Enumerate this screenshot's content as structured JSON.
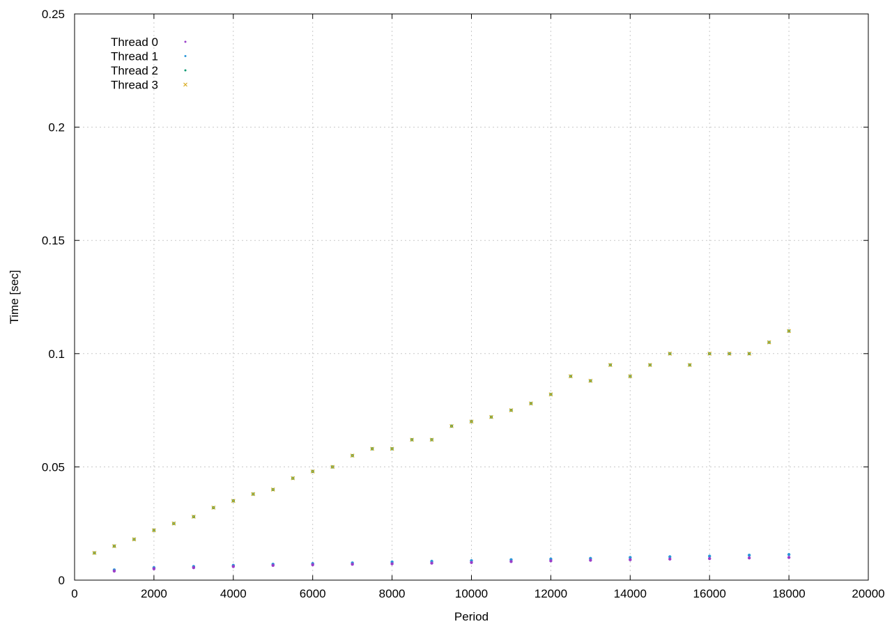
{
  "chart_data": {
    "type": "scatter",
    "title": "",
    "xlabel": "Period",
    "ylabel": "Time [sec]",
    "xlim": [
      0,
      20000
    ],
    "ylim": [
      0,
      0.25
    ],
    "xticks": [
      "0",
      "2000",
      "4000",
      "6000",
      "8000",
      "10000",
      "12000",
      "14000",
      "16000",
      "18000",
      "20000"
    ],
    "yticks": [
      "0",
      "0.05",
      "0.1",
      "0.15",
      "0.2",
      "0.25"
    ],
    "grid": true,
    "legend_position": "top-left",
    "series": [
      {
        "name": "Thread 0",
        "color": "#9a3fc9",
        "marker": "dot",
        "points": [
          [
            1000,
            0.004
          ],
          [
            2000,
            0.005
          ],
          [
            3000,
            0.0055
          ],
          [
            4000,
            0.006
          ],
          [
            5000,
            0.0065
          ],
          [
            6000,
            0.0068
          ],
          [
            7000,
            0.007
          ],
          [
            8000,
            0.0072
          ],
          [
            9000,
            0.0075
          ],
          [
            10000,
            0.0078
          ],
          [
            11000,
            0.0082
          ],
          [
            12000,
            0.0085
          ],
          [
            13000,
            0.0088
          ],
          [
            14000,
            0.009
          ],
          [
            15000,
            0.0093
          ],
          [
            16000,
            0.0095
          ],
          [
            17000,
            0.0098
          ],
          [
            18000,
            0.01
          ]
        ]
      },
      {
        "name": "Thread 1",
        "color": "#2b97d8",
        "marker": "dot",
        "points": [
          [
            1000,
            0.0045
          ],
          [
            2000,
            0.0055
          ],
          [
            3000,
            0.006
          ],
          [
            4000,
            0.0065
          ],
          [
            5000,
            0.007
          ],
          [
            6000,
            0.0073
          ],
          [
            7000,
            0.0076
          ],
          [
            8000,
            0.008
          ],
          [
            9000,
            0.0083
          ],
          [
            10000,
            0.0086
          ],
          [
            11000,
            0.009
          ],
          [
            12000,
            0.0093
          ],
          [
            13000,
            0.0096
          ],
          [
            14000,
            0.01
          ],
          [
            15000,
            0.0103
          ],
          [
            16000,
            0.0106
          ],
          [
            17000,
            0.011
          ],
          [
            18000,
            0.0113
          ]
        ]
      },
      {
        "name": "Thread 2",
        "color": "#0a9a72",
        "marker": "dot",
        "points": [
          [
            500,
            0.012
          ],
          [
            1000,
            0.015
          ],
          [
            1500,
            0.018
          ],
          [
            2000,
            0.022
          ],
          [
            2500,
            0.025
          ],
          [
            3000,
            0.028
          ],
          [
            3500,
            0.032
          ],
          [
            4000,
            0.035
          ],
          [
            4500,
            0.038
          ],
          [
            5000,
            0.04
          ],
          [
            5500,
            0.045
          ],
          [
            6000,
            0.048
          ],
          [
            6500,
            0.05
          ],
          [
            7000,
            0.055
          ],
          [
            7500,
            0.058
          ],
          [
            8000,
            0.058
          ],
          [
            8500,
            0.062
          ],
          [
            9000,
            0.062
          ],
          [
            9500,
            0.068
          ],
          [
            10000,
            0.07
          ],
          [
            10500,
            0.072
          ],
          [
            11000,
            0.075
          ],
          [
            11500,
            0.078
          ],
          [
            12000,
            0.082
          ],
          [
            12500,
            0.09
          ],
          [
            13000,
            0.088
          ],
          [
            13500,
            0.095
          ],
          [
            14000,
            0.09
          ],
          [
            14500,
            0.095
          ],
          [
            15000,
            0.1
          ],
          [
            15500,
            0.095
          ],
          [
            16000,
            0.1
          ],
          [
            16500,
            0.1
          ],
          [
            17000,
            0.1
          ],
          [
            17500,
            0.105
          ],
          [
            18000,
            0.11
          ]
        ]
      },
      {
        "name": "Thread 3",
        "color": "#d8ab1f",
        "marker": "cross",
        "points": [
          [
            500,
            0.012
          ],
          [
            1000,
            0.015
          ],
          [
            1500,
            0.018
          ],
          [
            2000,
            0.022
          ],
          [
            2500,
            0.025
          ],
          [
            3000,
            0.028
          ],
          [
            3500,
            0.032
          ],
          [
            4000,
            0.035
          ],
          [
            4500,
            0.038
          ],
          [
            5000,
            0.04
          ],
          [
            5500,
            0.045
          ],
          [
            6000,
            0.048
          ],
          [
            6500,
            0.05
          ],
          [
            7000,
            0.055
          ],
          [
            7500,
            0.058
          ],
          [
            8000,
            0.058
          ],
          [
            8500,
            0.062
          ],
          [
            9000,
            0.062
          ],
          [
            9500,
            0.068
          ],
          [
            10000,
            0.07
          ],
          [
            10500,
            0.072
          ],
          [
            11000,
            0.075
          ],
          [
            11500,
            0.078
          ],
          [
            12000,
            0.082
          ],
          [
            12500,
            0.09
          ],
          [
            13000,
            0.088
          ],
          [
            13500,
            0.095
          ],
          [
            14000,
            0.09
          ],
          [
            14500,
            0.095
          ],
          [
            15000,
            0.1
          ],
          [
            15500,
            0.095
          ],
          [
            16000,
            0.1
          ],
          [
            16500,
            0.1
          ],
          [
            17000,
            0.1
          ],
          [
            17500,
            0.105
          ],
          [
            18000,
            0.11
          ]
        ]
      }
    ]
  }
}
